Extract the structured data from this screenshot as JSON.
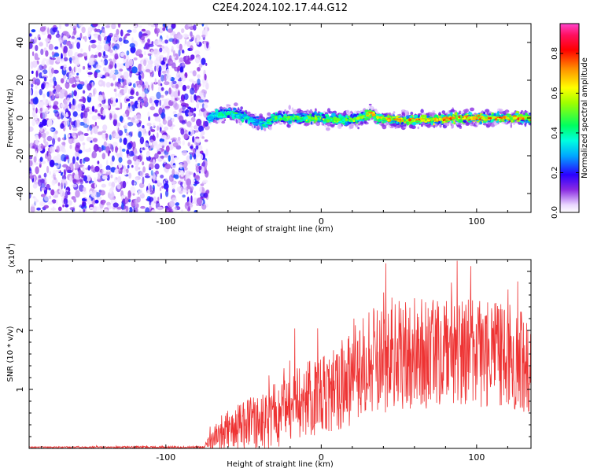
{
  "title": "C2E4.2024.102.17.44.G12",
  "chart_data": [
    {
      "type": "heatmap",
      "xlabel": "Height of straight line (km)",
      "ylabel": "Frequency (Hz)",
      "xlim": [
        -188,
        135
      ],
      "ylim": [
        -50,
        50
      ],
      "x_ticks": [
        -100,
        0,
        100
      ],
      "y_ticks": [
        -40,
        -20,
        0,
        20,
        40
      ],
      "colorbar": {
        "label": "Normalized spectral amplitude",
        "ticks": [
          0.0,
          0.2,
          0.4,
          0.6,
          0.8
        ],
        "range": [
          0.0,
          0.95
        ]
      },
      "noise_region": {
        "x_range": [
          -188,
          -73
        ],
        "description_level": "low amplitude scattered noise"
      },
      "signal_ridge": {
        "x": [
          -73,
          -65,
          -58,
          -50,
          -42,
          -36,
          -30,
          -20,
          -10,
          0,
          10,
          20,
          28,
          32,
          36,
          45,
          55,
          65,
          75,
          85,
          95,
          105,
          115,
          125,
          135
        ],
        "freq": [
          0,
          2,
          3,
          1,
          -2,
          -3,
          0,
          0,
          0,
          0,
          -1,
          -1,
          1,
          3,
          0,
          -1,
          -1,
          -1,
          -1,
          0,
          0,
          0,
          0,
          0,
          0
        ],
        "peak_amplitude": [
          0.35,
          0.45,
          0.5,
          0.45,
          0.35,
          0.45,
          0.55,
          0.55,
          0.6,
          0.62,
          0.6,
          0.6,
          0.65,
          0.8,
          0.7,
          0.75,
          0.8,
          0.82,
          0.85,
          0.85,
          0.85,
          0.85,
          0.82,
          0.8,
          0.75
        ]
      }
    },
    {
      "type": "line",
      "xlabel": "Height of straight line (km)",
      "ylabel": "SNR (10 * v/v)",
      "y_scale_label": "(x10",
      "y_scale_exp": "4",
      "xlim": [
        -188,
        135
      ],
      "ylim": [
        0,
        3.2
      ],
      "x_ticks": [
        -100,
        0,
        100
      ],
      "y_ticks": [
        1,
        2,
        3
      ],
      "color": "#ee3333",
      "envelope": {
        "x": [
          -188,
          -75,
          -70,
          -60,
          -50,
          -40,
          -30,
          -20,
          -10,
          0,
          10,
          20,
          30,
          40,
          50,
          60,
          70,
          80,
          90,
          100,
          110,
          120,
          130,
          135
        ],
        "mean": [
          0.02,
          0.02,
          0.15,
          0.3,
          0.35,
          0.45,
          0.55,
          0.7,
          0.8,
          0.95,
          1.05,
          1.25,
          1.45,
          1.55,
          1.55,
          1.6,
          1.6,
          1.6,
          1.65,
          1.6,
          1.6,
          1.55,
          1.5,
          1.45
        ],
        "spread": [
          0.01,
          0.02,
          0.2,
          0.35,
          0.45,
          0.5,
          0.55,
          0.6,
          0.65,
          0.7,
          0.75,
          0.85,
          0.9,
          0.95,
          0.95,
          0.95,
          0.95,
          0.9,
          0.9,
          0.9,
          0.9,
          0.9,
          0.9,
          0.85
        ]
      }
    }
  ]
}
